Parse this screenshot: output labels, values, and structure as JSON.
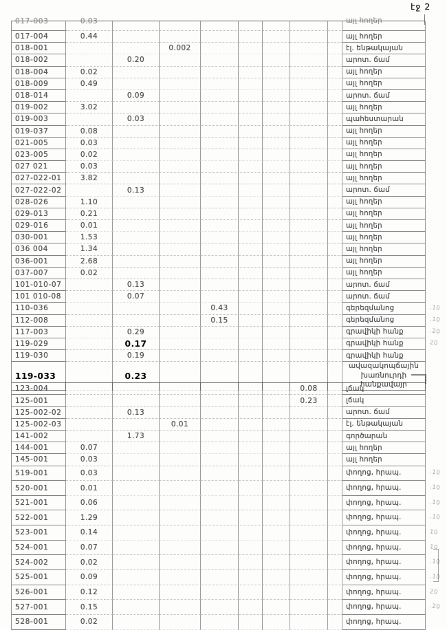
{
  "page": {
    "page_label": "էջ 2"
  },
  "table": {
    "rows": [
      {
        "code": "017-003",
        "col": 2,
        "value": "0.03",
        "label": "այլ հողեր",
        "partial": true
      },
      {
        "code": "017-004",
        "col": 2,
        "value": "0.44",
        "label": "այլ հողեր"
      },
      {
        "code": "018-001",
        "col": 4,
        "value": "0.002",
        "label": "էլ. ենթակայան"
      },
      {
        "code": "018-002",
        "col": 3,
        "value": "0.20",
        "label": "արոտ. ճամ"
      },
      {
        "code": "018-004",
        "col": 2,
        "value": "0.02",
        "label": "այլ հողեր"
      },
      {
        "code": "018-009",
        "col": 2,
        "value": "0.49",
        "label": "այլ հողեր"
      },
      {
        "code": "018-014",
        "col": 3,
        "value": "0.09",
        "label": "արոտ. ճամ"
      },
      {
        "code": "019-002",
        "col": 2,
        "value": "3.02",
        "label": "այլ հողեր"
      },
      {
        "code": "019-003",
        "col": 3,
        "value": "0.03",
        "label": "պահեստարան"
      },
      {
        "code": "019-037",
        "col": 2,
        "value": "0.08",
        "label": "այլ հողեր"
      },
      {
        "code": "021-005",
        "col": 2,
        "value": "0.03",
        "label": "այլ հողեր"
      },
      {
        "code": "023-005",
        "col": 2,
        "value": "0.02",
        "label": "այլ հողեր"
      },
      {
        "code": "027 021",
        "col": 2,
        "value": "0.03",
        "label": "այլ հողեր"
      },
      {
        "code": "027-022-01",
        "col": 2,
        "value": "3.82",
        "label": "այլ հողեր"
      },
      {
        "code": "027-022-02",
        "col": 3,
        "value": "0.13",
        "label": "արոտ. ճամ"
      },
      {
        "code": "028-026",
        "col": 2,
        "value": "1.10",
        "label": "այլ հողեր"
      },
      {
        "code": "029-013",
        "col": 2,
        "value": "0.21",
        "label": "այլ հողեր"
      },
      {
        "code": "029-016",
        "col": 2,
        "value": "0.01",
        "label": "այլ հողեր"
      },
      {
        "code": "030-001",
        "col": 2,
        "value": "1.53",
        "label": "այլ հողեր"
      },
      {
        "code": "036 004",
        "col": 2,
        "value": "1.34",
        "label": "այլ հողեր"
      },
      {
        "code": "036-001",
        "col": 2,
        "value": "2.68",
        "label": "այլ հողեր"
      },
      {
        "code": "037-007",
        "col": 2,
        "value": "0.02",
        "label": "այլ հողեր"
      },
      {
        "code": "101-010-07",
        "col": 3,
        "value": "0.13",
        "label": "արոտ. ճամ"
      },
      {
        "code": "101 010-08",
        "col": 3,
        "value": "0.07",
        "label": "արոտ. ճամ"
      },
      {
        "code": "110-036",
        "col": 5,
        "value": "0.43",
        "label": "գերեզմանոց",
        "note": ".10"
      },
      {
        "code": "112-008",
        "col": 5,
        "value": "0.15",
        "label": "գերեզմանոց",
        "note": ".10"
      },
      {
        "code": "117-003",
        "col": 3,
        "value": "0.29",
        "label": "գրավիկի հանք",
        "note": ".20"
      },
      {
        "code": "119-029",
        "col": 3,
        "value": "0.17",
        "label": "գրավիկի հանք",
        "note": "20",
        "sharp_value": true
      },
      {
        "code": "119-030",
        "col": 3,
        "value": "0.19",
        "label": "գրավիկի հանք"
      },
      {
        "code": "119-033",
        "col": 3,
        "value": "0.23",
        "label": "ավազակոպճային\nխառնուրդի հանքավայր",
        "sharp_value": true,
        "sharp_code": true,
        "two_line": true
      },
      {
        "code": "123-004",
        "col": 8,
        "value": "0.08",
        "label": "լճակ"
      },
      {
        "code": "125-001",
        "col": 8,
        "value": "0.23",
        "label": "լճակ"
      },
      {
        "code": "125-002-02",
        "col": 3,
        "value": "0.13",
        "label": "արոտ. ճամ"
      },
      {
        "code": "125-002-03",
        "col": 4,
        "value": "0.01",
        "label": "էլ. ենթակայան"
      },
      {
        "code": "141-002",
        "col": 3,
        "value": "1.73",
        "label": "գործարան"
      },
      {
        "code": "144-001",
        "col": 2,
        "value": "0.07",
        "label": "այլ հողեր"
      },
      {
        "code": "145-001",
        "col": 2,
        "value": "0.03",
        "label": "այլ հողեր"
      },
      {
        "code": "519-001",
        "col": 2,
        "value": "0.03",
        "label": "փողոց, հրապ.",
        "note": ".10"
      },
      {
        "code": "520-001",
        "col": 2,
        "value": "0.01",
        "label": "փողոց, հրապ.",
        "note": ".10"
      },
      {
        "code": "521-001",
        "col": 2,
        "value": "0.06",
        "label": "փողոց, հրապ.",
        "note": ".10"
      },
      {
        "code": "522-001",
        "col": 2,
        "value": "1.29",
        "label": "փողոց, հրապ.",
        "note": ".10"
      },
      {
        "code": "523-001",
        "col": 2,
        "value": "0.14",
        "label": "փողոց, հրապ.",
        "note": "10"
      },
      {
        "code": "524-001",
        "col": 2,
        "value": "0.07",
        "label": "փողոց, հրապ.",
        "note": "10"
      },
      {
        "code": "524-002",
        "col": 2,
        "value": "0.02",
        "label": "փողոց, հրապ.",
        "note": ".10"
      },
      {
        "code": "525-001",
        "col": 2,
        "value": "0.09",
        "label": "փողոց, հրապ.",
        "note": ".10"
      },
      {
        "code": "526-001",
        "col": 2,
        "value": "0.12",
        "label": "փողոց, հրապ.",
        "note": "20"
      },
      {
        "code": "527-001",
        "col": 2,
        "value": "0.15",
        "label": "փողոց, հրապ.",
        "note": ".20"
      },
      {
        "code": "528-001",
        "col": 2,
        "value": "0.02",
        "label": "փողոց, հրապ."
      }
    ]
  }
}
